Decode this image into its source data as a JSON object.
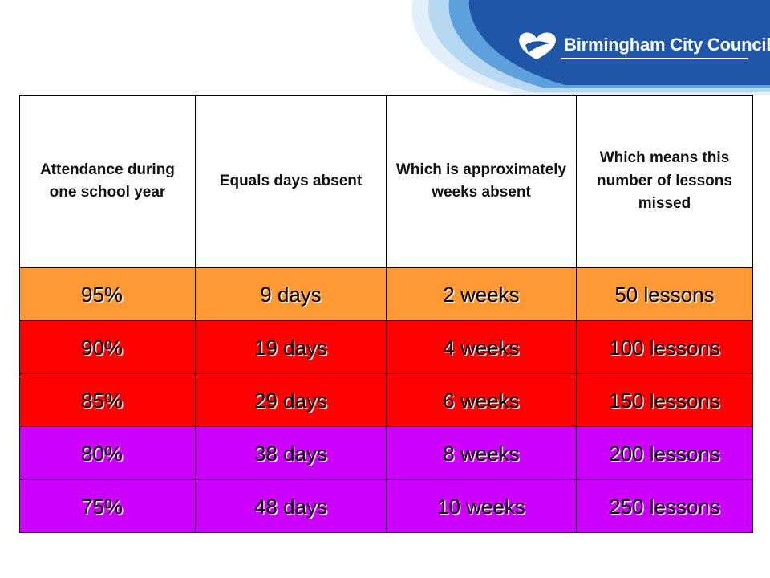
{
  "logo": {
    "text": "Birmingham City Council",
    "icon": "heart-swoosh-icon"
  },
  "colors": {
    "banner_blue": "#1f56a8",
    "orange_row": "#ff9933",
    "red_row": "#ff0000",
    "purple_row": "#cc00ff"
  },
  "table": {
    "headers": [
      "Attendance during one school year",
      "Equals days absent",
      "Which is approximately weeks absent",
      "Which means this number of lessons missed"
    ],
    "rows": [
      {
        "attendance": "95%",
        "days": "9 days",
        "weeks": "2 weeks",
        "lessons": "50 lessons",
        "color": "orange"
      },
      {
        "attendance": "90%",
        "days": "19 days",
        "weeks": "4 weeks",
        "lessons": "100 lessons",
        "color": "red"
      },
      {
        "attendance": "85%",
        "days": "29 days",
        "weeks": "6 weeks",
        "lessons": "150 lessons",
        "color": "red"
      },
      {
        "attendance": "80%",
        "days": "38 days",
        "weeks": "8 weeks",
        "lessons": "200 lessons",
        "color": "purple"
      },
      {
        "attendance": "75%",
        "days": "48 days",
        "weeks": "10 weeks",
        "lessons": "250 lessons",
        "color": "purple"
      }
    ]
  }
}
